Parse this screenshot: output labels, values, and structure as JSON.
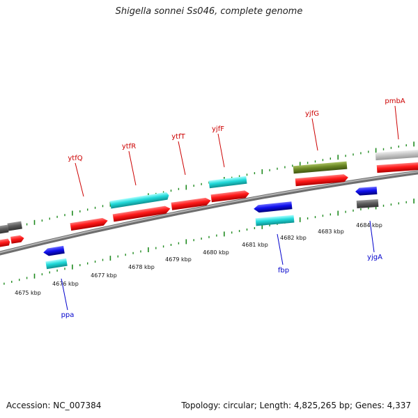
{
  "title": "Shigella sonnei Ss046, complete genome",
  "footer": {
    "accession": "Accession: NC_007384",
    "summary": "Topology: circular; Length: 4,825,265 bp; Genes: 4,337"
  },
  "colors": {
    "plus_strand_label": "#cc0000",
    "minus_strand_label": "#0000cc",
    "tick": "#1e8a1e",
    "backbone": "#777777"
  },
  "kbp_labels": [
    "4675 kbp",
    "4676 kbp",
    "4677 kbp",
    "4678 kbp",
    "4679 kbp",
    "4680 kbp",
    "4681 kbp",
    "4682 kbp",
    "4683 kbp",
    "4684 kbp"
  ],
  "gene_labels_top": [
    "ytfQ",
    "ytfR",
    "ytfT",
    "yjfF",
    "yjfG",
    "pmbA"
  ],
  "gene_labels_bottom": [
    "ppa",
    "fbp",
    "yjgA"
  ]
}
